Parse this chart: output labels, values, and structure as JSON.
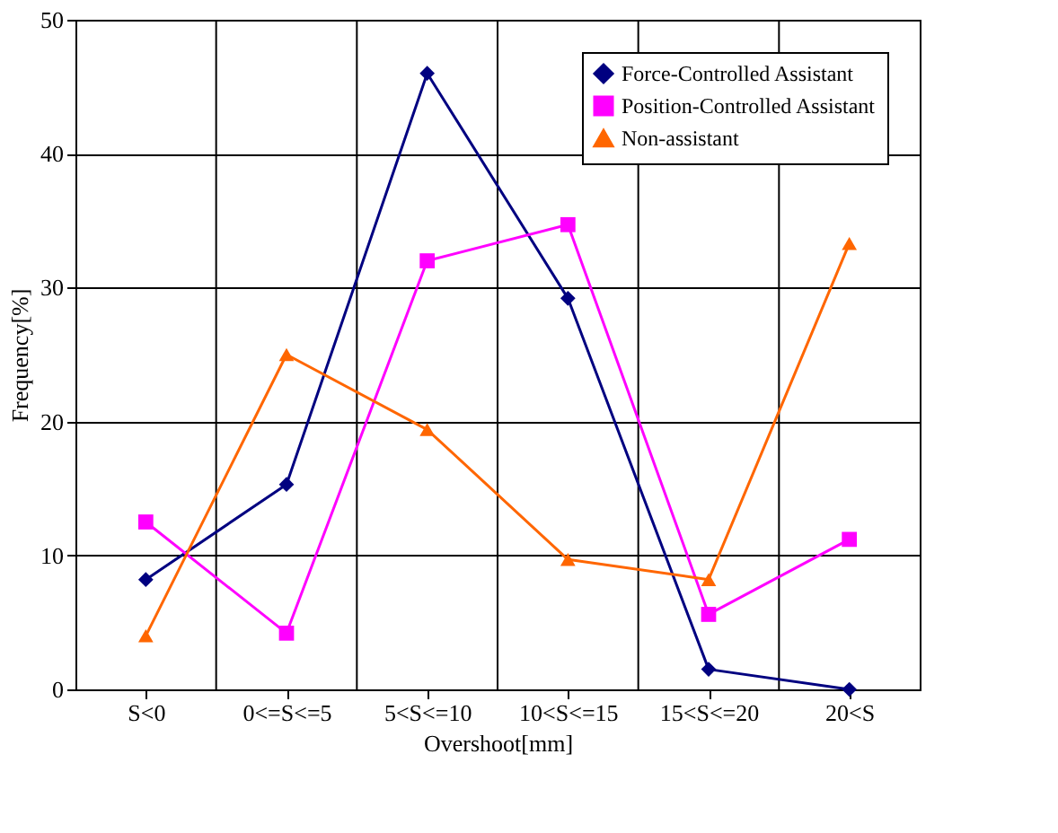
{
  "chart_data": {
    "type": "line",
    "xlabel": "Overshoot[mm]",
    "ylabel": "Frequency[%]",
    "categories": [
      "S<0",
      "0<=S<=5",
      "5<S<=10",
      "10<S<=15",
      "15<S<=20",
      "20<S"
    ],
    "series": [
      {
        "name": "Force-Controlled Assistant",
        "color": "#000080",
        "marker": "diamond",
        "values": [
          8.2,
          15.3,
          46,
          29.2,
          1.5,
          0
        ]
      },
      {
        "name": "Position-Controlled Assistant",
        "color": "#ff00ff",
        "marker": "square",
        "values": [
          12.5,
          4.2,
          32,
          34.7,
          5.6,
          11.2
        ]
      },
      {
        "name": "Non-assistant",
        "color": "#ff6600",
        "marker": "triangle",
        "values": [
          4.0,
          25,
          19.4,
          9.7,
          8.2,
          33.3
        ]
      }
    ],
    "ylim": [
      0,
      50
    ],
    "yticks": [
      0,
      10,
      20,
      30,
      40,
      50
    ],
    "grid": true,
    "legend": "top right",
    "line_style": "solid"
  }
}
